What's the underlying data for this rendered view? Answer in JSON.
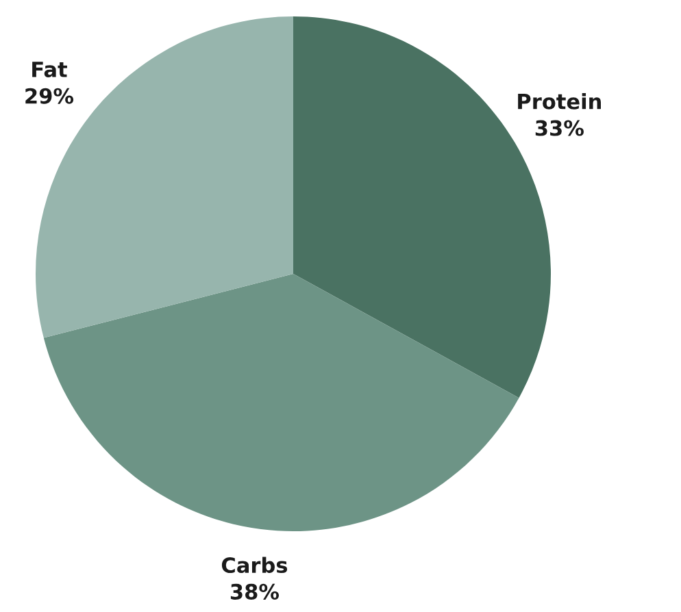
{
  "chart_data": {
    "type": "pie",
    "categories": [
      "Protein",
      "Carbs",
      "Fat"
    ],
    "values": [
      33,
      38,
      29
    ],
    "value_labels": [
      "33%",
      "38%",
      "29%"
    ],
    "colors": [
      "#4a7262",
      "#6d9486",
      "#97b5ad"
    ],
    "legend": false
  }
}
